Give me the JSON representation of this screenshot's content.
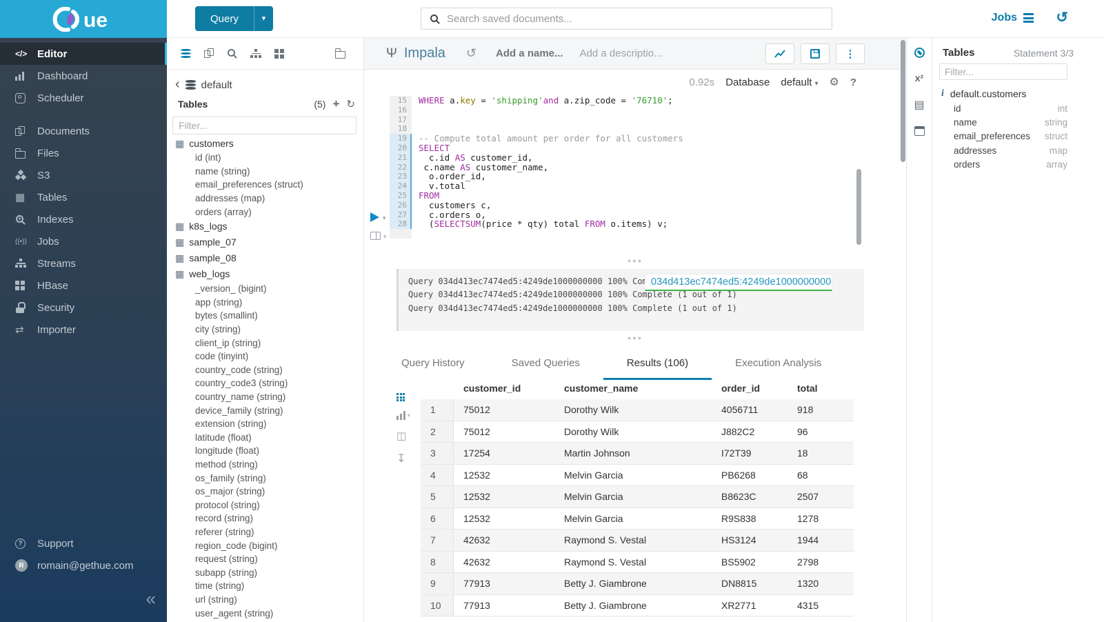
{
  "colors": {
    "brand_cyan": "#26a9d4",
    "primary_blue": "#0b7fad",
    "keyword_purple": "#a02da2",
    "string_green": "#379b28",
    "tooltip_underline_green": "#43b148",
    "sidebar_accent": "#2cb5e8"
  },
  "brand": {
    "name": "Hue",
    "logo_text": "ue"
  },
  "topbar": {
    "query_button": "Query",
    "search_placeholder": "Search saved documents...",
    "jobs_label": "Jobs"
  },
  "sidebar": {
    "items": [
      {
        "label": "Editor",
        "icon": "code-icon",
        "active": true
      },
      {
        "label": "Dashboard",
        "icon": "dashboard-icon"
      },
      {
        "label": "Scheduler",
        "icon": "scheduler-icon"
      },
      {
        "label": "Documents",
        "icon": "documents-icon",
        "gap": true
      },
      {
        "label": "Files",
        "icon": "files-icon"
      },
      {
        "label": "S3",
        "icon": "s3-icon"
      },
      {
        "label": "Tables",
        "icon": "tables-icon"
      },
      {
        "label": "Indexes",
        "icon": "indexes-icon"
      },
      {
        "label": "Jobs",
        "icon": "jobs-icon"
      },
      {
        "label": "Streams",
        "icon": "streams-icon"
      },
      {
        "label": "HBase",
        "icon": "hbase-icon"
      },
      {
        "label": "Security",
        "icon": "security-icon"
      },
      {
        "label": "Importer",
        "icon": "importer-icon"
      }
    ],
    "footer": [
      {
        "label": "Support",
        "icon": "question-icon"
      },
      {
        "label": "romain@gethue.com",
        "icon": "avatar",
        "avatar_letter": "R"
      }
    ],
    "collapse_glyph": "«"
  },
  "assist": {
    "database": "default",
    "tables_header": "Tables",
    "tables_count": "(5)",
    "filter_placeholder": "Filter...",
    "tree": [
      {
        "label": "customers",
        "kind": "table"
      },
      {
        "label": "id (int)",
        "kind": "column"
      },
      {
        "label": "name (string)",
        "kind": "column"
      },
      {
        "label": "email_preferences (struct)",
        "kind": "column"
      },
      {
        "label": "addresses (map)",
        "kind": "column"
      },
      {
        "label": "orders (array)",
        "kind": "column"
      },
      {
        "label": "k8s_logs",
        "kind": "table"
      },
      {
        "label": "sample_07",
        "kind": "table"
      },
      {
        "label": "sample_08",
        "kind": "table"
      },
      {
        "label": "web_logs",
        "kind": "table"
      },
      {
        "label": "_version_ (bigint)",
        "kind": "column"
      },
      {
        "label": "app (string)",
        "kind": "column"
      },
      {
        "label": "bytes (smallint)",
        "kind": "column"
      },
      {
        "label": "city (string)",
        "kind": "column"
      },
      {
        "label": "client_ip (string)",
        "kind": "column"
      },
      {
        "label": "code (tinyint)",
        "kind": "column"
      },
      {
        "label": "country_code (string)",
        "kind": "column"
      },
      {
        "label": "country_code3 (string)",
        "kind": "column"
      },
      {
        "label": "country_name (string)",
        "kind": "column"
      },
      {
        "label": "device_family (string)",
        "kind": "column"
      },
      {
        "label": "extension (string)",
        "kind": "column"
      },
      {
        "label": "latitude (float)",
        "kind": "column"
      },
      {
        "label": "longitude (float)",
        "kind": "column"
      },
      {
        "label": "method (string)",
        "kind": "column"
      },
      {
        "label": "os_family (string)",
        "kind": "column"
      },
      {
        "label": "os_major (string)",
        "kind": "column"
      },
      {
        "label": "protocol (string)",
        "kind": "column"
      },
      {
        "label": "record (string)",
        "kind": "column"
      },
      {
        "label": "referer (string)",
        "kind": "column"
      },
      {
        "label": "region_code (bigint)",
        "kind": "column"
      },
      {
        "label": "request (string)",
        "kind": "column"
      },
      {
        "label": "subapp (string)",
        "kind": "column"
      },
      {
        "label": "time (string)",
        "kind": "column"
      },
      {
        "label": "url (string)",
        "kind": "column"
      },
      {
        "label": "user_agent (string)",
        "kind": "column"
      }
    ]
  },
  "editor": {
    "engine": "Impala",
    "name_placeholder": "Add a name...",
    "desc_placeholder": "Add a descriptio...",
    "duration": "0.92s",
    "database_label": "Database",
    "database_value": "default",
    "active_from_line": 19,
    "lines": [
      {
        "n": "15",
        "t": "WHERE a.key = 'shipping' and a.zip_code = '76710';"
      },
      {
        "n": "16",
        "t": ""
      },
      {
        "n": "17",
        "t": ""
      },
      {
        "n": "18",
        "t": ""
      },
      {
        "n": "19",
        "t": "-- Compute total amount per order for all customers"
      },
      {
        "n": "20",
        "t": "SELECT"
      },
      {
        "n": "21",
        "t": "  c.id AS customer_id,"
      },
      {
        "n": "22",
        "t": " c.name AS customer_name,"
      },
      {
        "n": "23",
        "t": "  o.order_id,"
      },
      {
        "n": "24",
        "t": "  v.total"
      },
      {
        "n": "25",
        "t": "FROM"
      },
      {
        "n": "26",
        "t": "  customers c,"
      },
      {
        "n": "27",
        "t": "  c.orders o,"
      },
      {
        "n": "28",
        "t": "  (SELECT SUM(price * qty) total FROM o.items) v;"
      },
      {
        "n": "",
        "t": ""
      }
    ]
  },
  "log": {
    "lines": [
      "Query 034d413ec7474ed5:4249de1000000000 100% Complete (1 out of 1)",
      "Query 034d413ec7474ed5:4249de1000000000 100% Complete (1 out of 1)",
      "Query 034d413ec7474ed5:4249de1000000000 100% Complete (1 out of 1)"
    ],
    "tooltip": "034d413ec7474ed5:4249de1000000000"
  },
  "tabs": [
    {
      "label": "Query History",
      "active": false
    },
    {
      "label": "Saved Queries",
      "active": false
    },
    {
      "label": "Results (106)",
      "active": true
    },
    {
      "label": "Execution Analysis",
      "active": false
    }
  ],
  "results": {
    "columns": [
      "customer_id",
      "customer_name",
      "order_id",
      "total"
    ],
    "rows": [
      [
        "1",
        "75012",
        "Dorothy Wilk",
        "4056711",
        "918"
      ],
      [
        "2",
        "75012",
        "Dorothy Wilk",
        "J882C2",
        "96"
      ],
      [
        "3",
        "17254",
        "Martin Johnson",
        "I72T39",
        "18"
      ],
      [
        "4",
        "12532",
        "Melvin Garcia",
        "PB6268",
        "68"
      ],
      [
        "5",
        "12532",
        "Melvin Garcia",
        "B8623C",
        "2507"
      ],
      [
        "6",
        "12532",
        "Melvin Garcia",
        "R9S838",
        "1278"
      ],
      [
        "7",
        "42632",
        "Raymond S. Vestal",
        "HS3124",
        "1944"
      ],
      [
        "8",
        "42632",
        "Raymond S. Vestal",
        "BS5902",
        "2798"
      ],
      [
        "9",
        "77913",
        "Betty J. Giambrone",
        "DN8815",
        "1320"
      ],
      [
        "10",
        "77913",
        "Betty J. Giambrone",
        "XR2771",
        "4315"
      ]
    ]
  },
  "right_panel": {
    "title": "Tables",
    "statement": "Statement 3/3",
    "filter_placeholder": "Filter...",
    "table": "default.customers",
    "columns": [
      {
        "name": "id",
        "type": "int"
      },
      {
        "name": "name",
        "type": "string"
      },
      {
        "name": "email_preferences",
        "type": "struct"
      },
      {
        "name": "addresses",
        "type": "map"
      },
      {
        "name": "orders",
        "type": "array"
      }
    ]
  }
}
